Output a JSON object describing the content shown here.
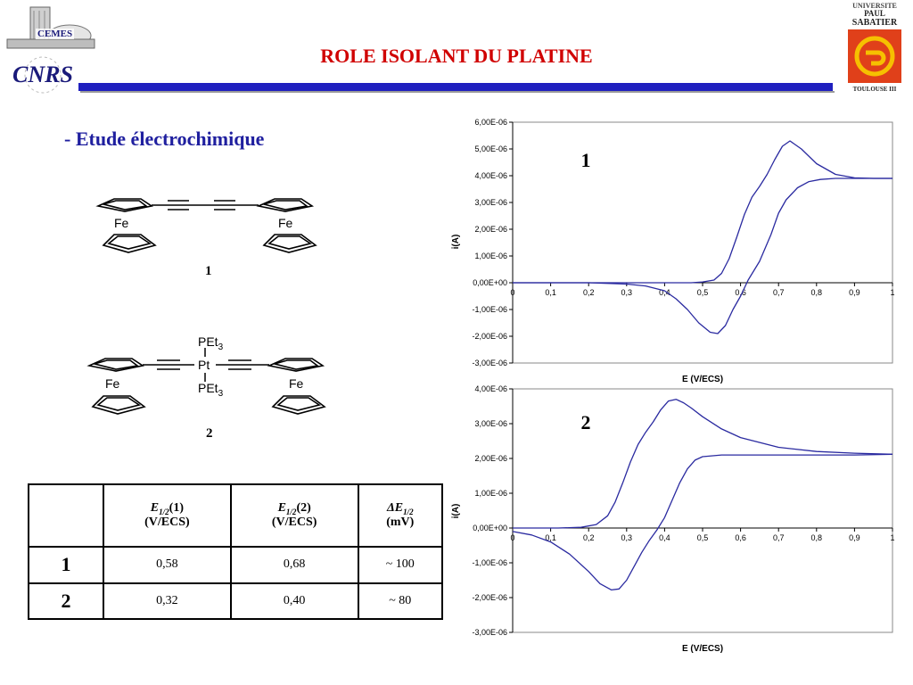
{
  "header": {
    "title": "ROLE ISOLANT DU PLATINE",
    "subtitle": "- Etude électrochimique",
    "logo_cemes": "CEMES",
    "logo_cnrs": "CNRS",
    "logo_ups_lines": [
      "UNIVERSITE",
      "PAUL",
      "SABATIER",
      "TOULOUSE III"
    ]
  },
  "structures": {
    "compound1": {
      "label": "1",
      "fe_left": "Fe",
      "fe_right": "Fe"
    },
    "compound2": {
      "label": "2",
      "fe_left": "Fe",
      "fe_right": "Fe",
      "ligand_top": "PEt",
      "ligand_bottom": "PEt",
      "ligand_sub": "3",
      "metal": "Pt"
    }
  },
  "table": {
    "col_headers": [
      {
        "sym": "E",
        "sub": "1/2",
        "suffix": "(1)",
        "unit": "(V/ECS)"
      },
      {
        "sym": "E",
        "sub": "1/2",
        "suffix": "(2)",
        "unit": "(V/ECS)"
      },
      {
        "sym": "ΔE",
        "sub": "1/2",
        "suffix": "",
        "unit": "(mV)"
      }
    ],
    "rows": [
      {
        "label": "1",
        "cells": [
          "0,58",
          "0,68",
          "~ 100"
        ]
      },
      {
        "label": "2",
        "cells": [
          "0,32",
          "0,40",
          "~ 80"
        ]
      }
    ]
  },
  "colors": {
    "title": "#d00000",
    "subtitle": "#1f1f9f",
    "bar": "#1f1fbf",
    "curve": "#2a2aa0"
  },
  "chart_data": [
    {
      "type": "line",
      "panel_label": "1",
      "xlabel": "E (V/ECS)",
      "ylabel": "i(A)",
      "xlim": [
        0,
        1
      ],
      "ylim": [
        -3e-06,
        6e-06
      ],
      "x_ticks": [
        "0",
        "0,1",
        "0,2",
        "0,3",
        "0,4",
        "0,5",
        "0,6",
        "0,7",
        "0,8",
        "0,9",
        "1"
      ],
      "y_ticks": [
        "6,00E-06",
        "5,00E-06",
        "4,00E-06",
        "3,00E-06",
        "2,00E-06",
        "1,00E-06",
        "0,00E+00",
        "-1,00E-06",
        "-2,00E-06",
        "-3,00E-06"
      ],
      "series": [
        {
          "x": [
            1.0,
            0.95,
            0.9,
            0.85,
            0.8,
            0.76,
            0.73,
            0.71,
            0.69,
            0.67,
            0.65,
            0.63,
            0.61,
            0.59,
            0.57,
            0.55,
            0.53,
            0.5,
            0.47,
            0.44,
            0.41,
            0.38,
            0.3,
            0.2,
            0.1,
            0.0
          ],
          "y": [
            3.9e-06,
            3.9e-06,
            3.92e-06,
            4.05e-06,
            4.45e-06,
            5e-06,
            5.3e-06,
            5.1e-06,
            4.6e-06,
            4.05e-06,
            3.6e-06,
            3.2e-06,
            2.55e-06,
            1.7e-06,
            9e-07,
            3.5e-07,
            1e-07,
            3e-08,
            0.0,
            0.0,
            0.0,
            0.0,
            0.0,
            0.0,
            0.0,
            0.0
          ]
        },
        {
          "x": [
            0.0,
            0.1,
            0.2,
            0.3,
            0.35,
            0.4,
            0.43,
            0.46,
            0.49,
            0.52,
            0.54,
            0.56,
            0.58,
            0.6,
            0.62,
            0.65,
            0.68,
            0.7,
            0.72,
            0.75,
            0.78,
            0.81,
            0.85,
            0.9,
            1.0
          ],
          "y": [
            0.0,
            0.0,
            0.0,
            -5e-08,
            -1.2e-07,
            -3e-07,
            -6e-07,
            -1e-06,
            -1.5e-06,
            -1.85e-06,
            -1.9e-06,
            -1.6e-06,
            -1e-06,
            -5e-07,
            1e-07,
            8e-07,
            1.8e-06,
            2.6e-06,
            3.1e-06,
            3.55e-06,
            3.78e-06,
            3.86e-06,
            3.9e-06,
            3.9e-06,
            3.9e-06
          ]
        }
      ]
    },
    {
      "type": "line",
      "panel_label": "2",
      "xlabel": "E (V/ECS)",
      "ylabel": "i(A)",
      "xlim": [
        0,
        1
      ],
      "ylim": [
        -3e-06,
        4e-06
      ],
      "x_ticks": [
        "0",
        "0,1",
        "0,2",
        "0,3",
        "0,4",
        "0,5",
        "0,6",
        "0,7",
        "0,8",
        "0,9",
        "1"
      ],
      "y_ticks": [
        "4,00E-06",
        "3,00E-06",
        "2,00E-06",
        "1,00E-06",
        "0,00E+00",
        "-1,00E-06",
        "-2,00E-06",
        "-3,00E-06"
      ],
      "series": [
        {
          "x": [
            1.0,
            0.9,
            0.8,
            0.7,
            0.6,
            0.55,
            0.5,
            0.47,
            0.45,
            0.43,
            0.41,
            0.39,
            0.37,
            0.35,
            0.33,
            0.31,
            0.29,
            0.27,
            0.25,
            0.22,
            0.18,
            0.12,
            0.0
          ],
          "y": [
            2.12e-06,
            2.15e-06,
            2.2e-06,
            2.32e-06,
            2.6e-06,
            2.85e-06,
            3.2e-06,
            3.45e-06,
            3.6e-06,
            3.7e-06,
            3.65e-06,
            3.4e-06,
            3.05e-06,
            2.75e-06,
            2.4e-06,
            1.9e-06,
            1.3e-06,
            7.5e-07,
            3.5e-07,
            1e-07,
            2e-08,
            0.0,
            0.0
          ]
        },
        {
          "x": [
            0.0,
            0.05,
            0.1,
            0.15,
            0.2,
            0.23,
            0.26,
            0.28,
            0.3,
            0.32,
            0.34,
            0.36,
            0.38,
            0.4,
            0.42,
            0.44,
            0.46,
            0.48,
            0.5,
            0.55,
            0.6,
            0.7,
            0.8,
            0.9,
            1.0
          ],
          "y": [
            -1e-07,
            -2e-07,
            -4e-07,
            -7.5e-07,
            -1.25e-06,
            -1.6e-06,
            -1.78e-06,
            -1.75e-06,
            -1.5e-06,
            -1.1e-06,
            -7e-07,
            -3.5e-07,
            -5e-08,
            3e-07,
            8e-07,
            1.3e-06,
            1.7e-06,
            1.95e-06,
            2.05e-06,
            2.1e-06,
            2.1e-06,
            2.1e-06,
            2.1e-06,
            2.1e-06,
            2.12e-06
          ]
        }
      ]
    }
  ]
}
